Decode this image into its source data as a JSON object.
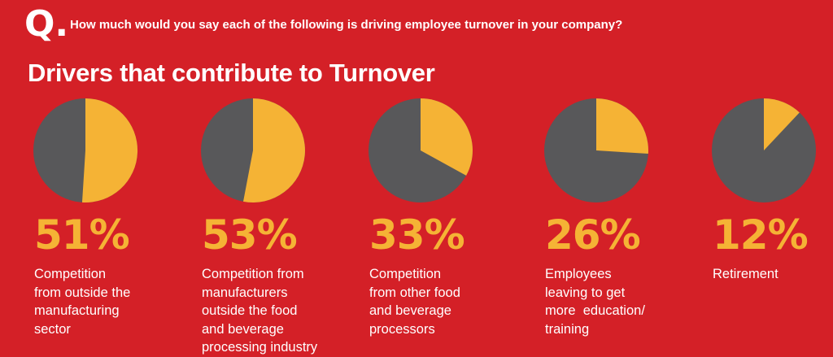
{
  "header": {
    "q_badge": "Q.",
    "question": "How much would you say each of the following is driving employee turnover in your company?"
  },
  "colors": {
    "background": "#d42027",
    "slice": "#f5b335",
    "remainder": "#58585a",
    "text": "#ffffff"
  },
  "chart_data": {
    "type": "pie",
    "title": "Drivers that contribute to Turnover",
    "unit": "%",
    "categories": [
      "Competition from outside the manufacturing sector",
      "Competition from manufacturers outside the food and beverage processing industry",
      "Competition from other food and beverage processors",
      "Employees leaving to get more education/ training",
      "Retirement"
    ],
    "items": [
      {
        "value": 51,
        "display": "51%",
        "label_lines": [
          "Competition",
          "from outside the",
          "manufacturing",
          "sector"
        ]
      },
      {
        "value": 53,
        "display": "53%",
        "label_lines": [
          "Competition from",
          "manufacturers",
          "outside the food",
          "and beverage",
          "processing industry"
        ]
      },
      {
        "value": 33,
        "display": "33%",
        "label_lines": [
          "Competition",
          "from other food",
          "and beverage",
          "processors"
        ]
      },
      {
        "value": 26,
        "display": "26%",
        "label_lines": [
          "Employees",
          "leaving to get",
          "more  education/",
          "training"
        ]
      },
      {
        "value": 12,
        "display": "12%",
        "label_lines": [
          "Retirement"
        ]
      }
    ]
  }
}
